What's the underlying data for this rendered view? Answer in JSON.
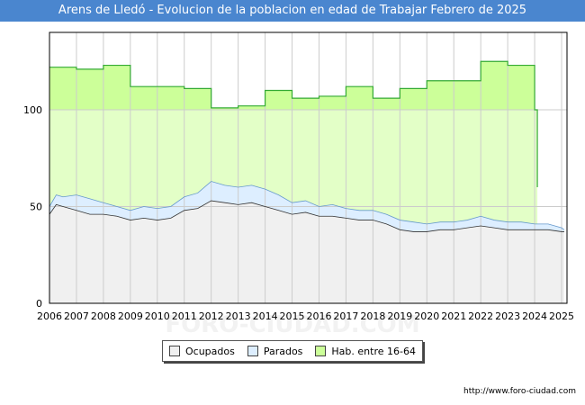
{
  "header": {
    "title": "Arens de Lledó - Evolucion de la poblacion en edad de Trabajar Febrero de 2025"
  },
  "footer": {
    "source": "http://www.foro-ciudad.com"
  },
  "watermark": "FORO-CIUDAD.COM",
  "chart_data": {
    "type": "area",
    "title": "Arens de Lledó - Evolucion de la poblacion en edad de Trabajar Febrero de 2025",
    "xlim": [
      2006,
      2025.2
    ],
    "ylim": [
      0,
      140
    ],
    "yticks": [
      0,
      50,
      100
    ],
    "xticks": [
      "2006",
      "2007",
      "2008",
      "2009",
      "2010",
      "2011",
      "2012",
      "2013",
      "2014",
      "2015",
      "2016",
      "2017",
      "2018",
      "2019",
      "2020",
      "2021",
      "2022",
      "2023",
      "2024",
      "2025"
    ],
    "grid": true,
    "legend": [
      "Ocupados",
      "Parados",
      "Hab. entre 16-64"
    ],
    "legend_position": "bottom",
    "colors": {
      "ocupados": "#f0f0f0",
      "parados": "#ddeeff",
      "habitantes": "#ccff99",
      "habitantes_line": "#33aa33",
      "line": "#333333"
    },
    "series": [
      {
        "name": "Hab. entre 16-64",
        "step": true,
        "x": [
          2006,
          2007,
          2008,
          2009,
          2010,
          2011,
          2012,
          2013,
          2014,
          2015,
          2016,
          2017,
          2018,
          2019,
          2020,
          2021,
          2022,
          2023,
          2024,
          2024.1
        ],
        "values": [
          122,
          121,
          123,
          112,
          112,
          111,
          101,
          102,
          110,
          106,
          107,
          112,
          106,
          111,
          115,
          115,
          125,
          123,
          100,
          60
        ]
      },
      {
        "name": "Parados",
        "x": [
          2006,
          2006.25,
          2006.5,
          2007,
          2007.5,
          2008,
          2008.5,
          2009,
          2009.5,
          2010,
          2010.5,
          2011,
          2011.5,
          2012,
          2012.5,
          2013,
          2013.5,
          2014,
          2014.5,
          2015,
          2015.5,
          2016,
          2016.5,
          2017,
          2017.5,
          2018,
          2018.5,
          2019,
          2019.5,
          2020,
          2020.5,
          2021,
          2021.5,
          2022,
          2022.5,
          2023,
          2023.5,
          2024,
          2024.5,
          2025,
          2025.1
        ],
        "values": [
          50,
          56,
          55,
          56,
          54,
          52,
          50,
          48,
          50,
          49,
          50,
          55,
          57,
          63,
          61,
          60,
          61,
          59,
          56,
          52,
          53,
          50,
          51,
          49,
          48,
          48,
          46,
          43,
          42,
          41,
          42,
          42,
          43,
          45,
          43,
          42,
          42,
          41,
          41,
          39,
          38
        ]
      },
      {
        "name": "Ocupados",
        "x": [
          2006,
          2006.25,
          2006.5,
          2007,
          2007.5,
          2008,
          2008.5,
          2009,
          2009.5,
          2010,
          2010.5,
          2011,
          2011.5,
          2012,
          2012.5,
          2013,
          2013.5,
          2014,
          2014.5,
          2015,
          2015.5,
          2016,
          2016.5,
          2017,
          2017.5,
          2018,
          2018.5,
          2019,
          2019.5,
          2020,
          2020.5,
          2021,
          2021.5,
          2022,
          2022.5,
          2023,
          2023.5,
          2024,
          2024.5,
          2025,
          2025.1
        ],
        "values": [
          46,
          51,
          50,
          48,
          46,
          46,
          45,
          43,
          44,
          43,
          44,
          48,
          49,
          53,
          52,
          51,
          52,
          50,
          48,
          46,
          47,
          45,
          45,
          44,
          43,
          43,
          41,
          38,
          37,
          37,
          38,
          38,
          39,
          40,
          39,
          38,
          38,
          38,
          38,
          37,
          37
        ]
      }
    ]
  }
}
